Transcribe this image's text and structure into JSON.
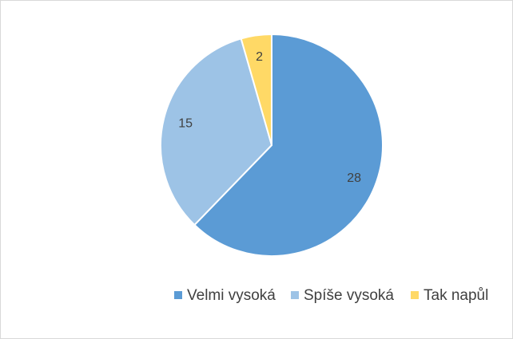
{
  "chart_data": {
    "type": "pie",
    "categories": [
      "Velmi vysoká",
      "Spíše vysoká",
      "Tak napůl"
    ],
    "values": [
      28,
      15,
      2
    ],
    "colors": [
      "#5b9bd5",
      "#9dc3e6",
      "#ffd966"
    ],
    "legend": "bottom"
  }
}
